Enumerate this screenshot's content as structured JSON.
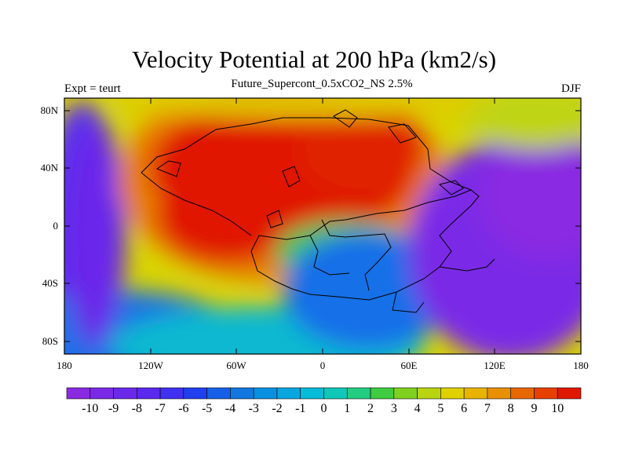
{
  "title": "Velocity Potential at 200 hPa (km2/s)",
  "subtitle": "Future_Supercont_0.5xCO2_NS 2.5%",
  "left_label": "Expt = teurt",
  "right_label": "DJF",
  "map": {
    "lat_ticks": [
      "80N",
      "40N",
      "0",
      "40S",
      "80S"
    ],
    "lon_ticks": [
      "180",
      "120W",
      "60W",
      "0",
      "60E",
      "120E",
      "180"
    ]
  },
  "colorbar": {
    "labels": [
      "-10",
      "-9",
      "-8",
      "-7",
      "-6",
      "-5",
      "-4",
      "-3",
      "-2",
      "-1",
      "0",
      "1",
      "2",
      "3",
      "4",
      "5",
      "6",
      "7",
      "8",
      "9",
      "10"
    ],
    "colors": [
      "#8a2be2",
      "#7a2ae6",
      "#6a28ea",
      "#5a28ee",
      "#4030f0",
      "#2040f0",
      "#1660e8",
      "#1278e0",
      "#0a90e0",
      "#08a6e0",
      "#06bcd8",
      "#10c8b8",
      "#22cc80",
      "#40cc40",
      "#80d020",
      "#b8d410",
      "#e0d000",
      "#e8b400",
      "#e89000",
      "#e86800",
      "#e84000",
      "#e01800"
    ]
  }
}
